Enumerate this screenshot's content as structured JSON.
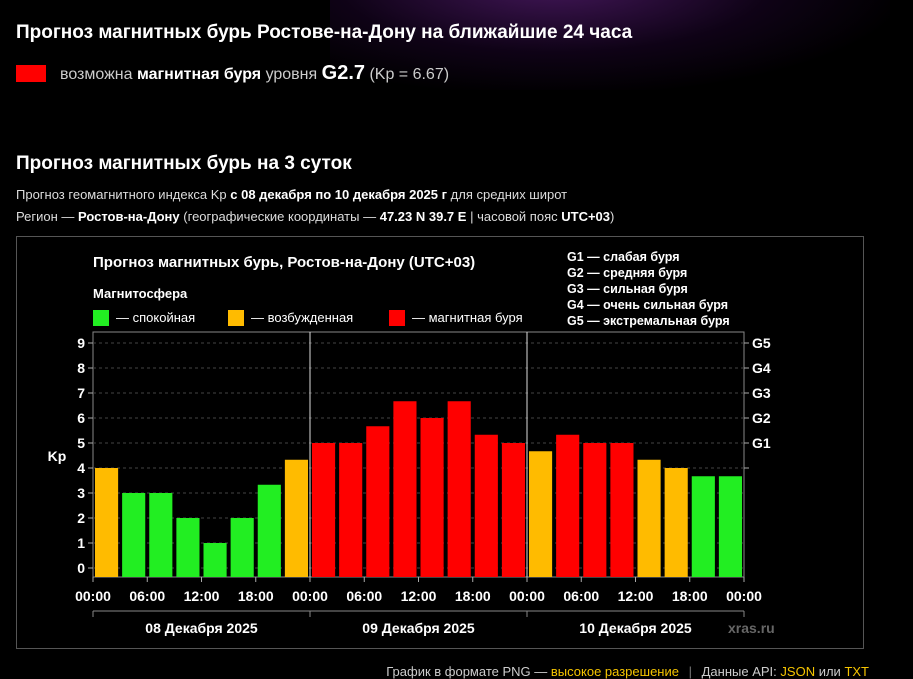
{
  "header": {
    "title": "Прогноз магнитных бурь Ростове-на-Дону на ближайшие 24 часа",
    "status_prefix": "возможна",
    "status_strong": "магнитная буря",
    "status_mid": "уровня",
    "status_level": "G2.7",
    "status_kp": "(Kp = 6.67)",
    "status_color": "#ff0000"
  },
  "forecast": {
    "title": "Прогноз магнитных бурь на 3 суток",
    "line1_pre": "Прогноз геомагнитного индекса Kp",
    "line1_strong": "с 08 декабря по 10 декабря 2025 г",
    "line1_post": "для средних широт",
    "line2_pre": "Регион —",
    "line2_region": "Ростов-на-Дону",
    "line2_mid": "(географические координаты —",
    "line2_coords": "47.23 N 39.7 E",
    "line2_mid2": "| часовой пояс",
    "line2_tz": "UTC+03",
    "line2_post": ")"
  },
  "chart_data": {
    "type": "bar",
    "title": "Прогноз магнитных бурь, Ростов-на-Дону (UTC+03)",
    "legend_title": "Магнитосфера",
    "legend": [
      {
        "label": "— спокойная",
        "color": "#22ee22"
      },
      {
        "label": "— возбужденная",
        "color": "#ffbb00"
      },
      {
        "label": "— магнитная буря",
        "color": "#ff0000"
      }
    ],
    "scale_legend": [
      "G1 — слабая буря",
      "G2 — средняя буря",
      "G3 — сильная буря",
      "G4 — очень сильная буря",
      "G5 — экстремальная буря"
    ],
    "ylabel": "Kp",
    "ylim": [
      0,
      9
    ],
    "yticks": [
      "0",
      "1",
      "2",
      "3",
      "4",
      "5",
      "6",
      "7",
      "8",
      "9"
    ],
    "right_ticks": [
      {
        "label": "G1",
        "value": 5
      },
      {
        "label": "G2",
        "value": 6
      },
      {
        "label": "G3",
        "value": 7
      },
      {
        "label": "G4",
        "value": 8
      },
      {
        "label": "G5",
        "value": 9
      }
    ],
    "xtick_labels": [
      "00:00",
      "06:00",
      "12:00",
      "18:00",
      "00:00",
      "06:00",
      "12:00",
      "18:00",
      "00:00",
      "06:00",
      "12:00",
      "18:00",
      "00:00"
    ],
    "days": [
      "08 Декабря 2025",
      "09 Декабря 2025",
      "10 Декабря 2025"
    ],
    "values": [
      4.0,
      3.0,
      3.0,
      2.0,
      1.0,
      2.0,
      3.33,
      4.33,
      5.0,
      5.0,
      5.67,
      6.67,
      6.0,
      6.67,
      5.33,
      5.0,
      4.67,
      5.33,
      5.0,
      5.0,
      4.33,
      4.0,
      3.67,
      3.67
    ],
    "watermark": "xras.ru",
    "grid": true
  },
  "footer": {
    "pre": "График в формате PNG —",
    "link_hires": "высокое разрешение",
    "api_pre": "Данные API:",
    "link_json": "JSON",
    "or": "или",
    "link_txt": "TXT"
  }
}
